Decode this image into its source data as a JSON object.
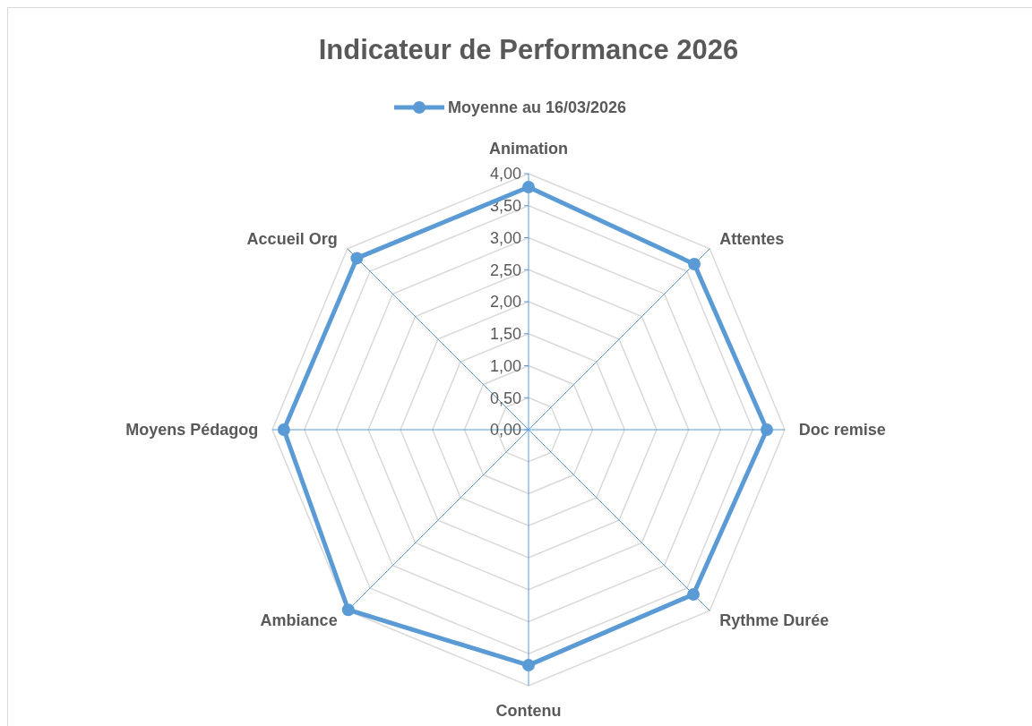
{
  "chart_data": {
    "type": "radar",
    "title": "Indicateur de Performance 2026",
    "categories": [
      "Animation",
      "Attentes",
      "Doc remise",
      "Rythme Durée",
      "Contenu",
      "Ambiance",
      "Moyens Pédagog",
      "Accueil Org"
    ],
    "series": [
      {
        "name": "Moyenne au 16/03/2026",
        "color": "#5b9bd5",
        "values": [
          3.79,
          3.66,
          3.72,
          3.64,
          3.68,
          3.98,
          3.82,
          3.79
        ]
      }
    ],
    "ylim": [
      0,
      4
    ],
    "yticks": [
      {
        "value": 0,
        "label": "0,00"
      },
      {
        "value": 0.5,
        "label": "0,50"
      },
      {
        "value": 1,
        "label": "1,00"
      },
      {
        "value": 1.5,
        "label": "1,50"
      },
      {
        "value": 2,
        "label": "2,00"
      },
      {
        "value": 2.5,
        "label": "2,50"
      },
      {
        "value": 3,
        "label": "3,00"
      },
      {
        "value": 3.5,
        "label": "3,50"
      },
      {
        "value": 4,
        "label": "4,00"
      }
    ],
    "grid": true,
    "legend": "top",
    "marker": "circle",
    "line_style": "solid"
  }
}
